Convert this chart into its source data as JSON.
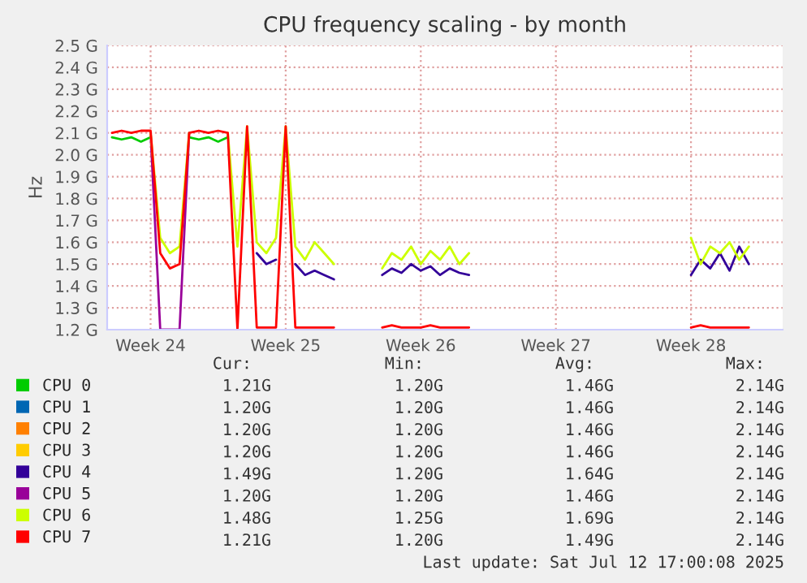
{
  "chart_data": {
    "type": "line",
    "title": "CPU frequency scaling - by month",
    "ylabel": "Hz",
    "categories": [
      null,
      null,
      null,
      null,
      "Week 24",
      null,
      null,
      null,
      null,
      null,
      null,
      null,
      null,
      null,
      null,
      null,
      null,
      null,
      "Week 25",
      null,
      null,
      null,
      null,
      null,
      null,
      null,
      null,
      null,
      null,
      null,
      null,
      null,
      "Week 26",
      null,
      null,
      null,
      null,
      null,
      null,
      null,
      null,
      null,
      null,
      null,
      null,
      null,
      "Week 27",
      null,
      null,
      null,
      null,
      null,
      null,
      null,
      null,
      null,
      null,
      null,
      null,
      null,
      "Week 28",
      null,
      null,
      null,
      null,
      null,
      null,
      null,
      null,
      null
    ],
    "series": [
      {
        "name": "CPU 0",
        "color": "#00cc00",
        "values": [
          2.08,
          2.07,
          2.08,
          2.06,
          2.08,
          null,
          null,
          null,
          2.08,
          2.07,
          2.08,
          2.06,
          2.08,
          null,
          null,
          null,
          null,
          null,
          null,
          null,
          null,
          null,
          null,
          null,
          null,
          null,
          null,
          null,
          null,
          null,
          null,
          null,
          null,
          null,
          null,
          null,
          null,
          null,
          null,
          null,
          null,
          null,
          null,
          null,
          null,
          null,
          null,
          null,
          null,
          null,
          null,
          null,
          null,
          null,
          null,
          null,
          null,
          null,
          null,
          null,
          null,
          null,
          null,
          null,
          null,
          null,
          null,
          null,
          null,
          null
        ]
      },
      {
        "name": "CPU 1",
        "color": "#0066b3",
        "values": [
          null,
          null,
          null,
          null,
          null,
          null,
          null,
          null,
          null,
          null,
          null,
          null,
          null,
          null,
          null,
          null,
          null,
          null,
          null,
          null,
          null,
          null,
          null,
          null,
          null,
          null,
          null,
          null,
          null,
          null,
          null,
          null,
          null,
          null,
          null,
          null,
          null,
          null,
          null,
          null,
          null,
          null,
          null,
          null,
          null,
          null,
          null,
          null,
          null,
          null,
          null,
          null,
          null,
          null,
          null,
          null,
          null,
          null,
          null,
          null,
          null,
          null,
          null,
          null,
          null,
          null,
          null,
          null,
          null,
          null
        ]
      },
      {
        "name": "CPU 2",
        "color": "#ff8000",
        "values": [
          null,
          null,
          null,
          null,
          null,
          null,
          null,
          null,
          null,
          null,
          null,
          null,
          null,
          null,
          null,
          null,
          null,
          null,
          null,
          null,
          null,
          null,
          null,
          null,
          null,
          null,
          null,
          null,
          null,
          null,
          null,
          null,
          null,
          null,
          null,
          null,
          null,
          null,
          null,
          null,
          null,
          null,
          null,
          null,
          null,
          null,
          null,
          null,
          null,
          null,
          null,
          null,
          null,
          null,
          null,
          null,
          null,
          null,
          null,
          null,
          null,
          null,
          null,
          null,
          null,
          null,
          null,
          null,
          null,
          null
        ]
      },
      {
        "name": "CPU 3",
        "color": "#ffcc00",
        "values": [
          null,
          null,
          null,
          null,
          null,
          null,
          null,
          null,
          null,
          null,
          null,
          null,
          null,
          null,
          null,
          null,
          null,
          null,
          null,
          null,
          null,
          null,
          null,
          null,
          null,
          null,
          null,
          null,
          null,
          null,
          null,
          null,
          null,
          null,
          null,
          null,
          null,
          null,
          null,
          null,
          null,
          null,
          null,
          null,
          null,
          null,
          null,
          null,
          null,
          null,
          null,
          null,
          null,
          null,
          null,
          null,
          null,
          null,
          null,
          null,
          null,
          null,
          null,
          null,
          null,
          null,
          null,
          null,
          null,
          null
        ]
      },
      {
        "name": "CPU 4",
        "color": "#330099",
        "values": [
          null,
          null,
          null,
          null,
          null,
          null,
          null,
          null,
          null,
          null,
          null,
          null,
          null,
          null,
          null,
          1.55,
          1.5,
          1.52,
          null,
          1.5,
          1.45,
          1.47,
          1.45,
          1.43,
          null,
          null,
          null,
          null,
          1.45,
          1.48,
          1.46,
          1.5,
          1.47,
          1.49,
          1.45,
          1.48,
          1.46,
          1.45,
          null,
          null,
          null,
          null,
          null,
          null,
          null,
          null,
          null,
          null,
          null,
          null,
          null,
          null,
          null,
          null,
          null,
          null,
          null,
          null,
          null,
          null,
          1.45,
          1.52,
          1.48,
          1.55,
          1.47,
          1.58,
          1.5,
          null,
          null,
          null
        ]
      },
      {
        "name": "CPU 5",
        "color": "#990099",
        "values": [
          null,
          null,
          null,
          null,
          2.1,
          1.2,
          1.2,
          1.2,
          2.1,
          null,
          null,
          null,
          null,
          null,
          null,
          null,
          null,
          null,
          null,
          null,
          null,
          null,
          null,
          null,
          null,
          null,
          null,
          null,
          null,
          null,
          null,
          null,
          null,
          null,
          null,
          null,
          null,
          null,
          null,
          null,
          null,
          null,
          null,
          null,
          null,
          null,
          null,
          null,
          null,
          null,
          null,
          null,
          null,
          null,
          null,
          null,
          null,
          null,
          null,
          null,
          null,
          null,
          null,
          null,
          null,
          null,
          null,
          null,
          null,
          null
        ]
      },
      {
        "name": "CPU 6",
        "color": "#ccff00",
        "values": [
          null,
          null,
          null,
          null,
          2.1,
          1.62,
          1.55,
          1.58,
          2.1,
          null,
          null,
          null,
          2.1,
          1.58,
          2.13,
          1.6,
          1.55,
          1.62,
          2.13,
          1.58,
          1.52,
          1.6,
          1.55,
          1.5,
          null,
          null,
          null,
          null,
          1.48,
          1.55,
          1.52,
          1.58,
          1.5,
          1.56,
          1.52,
          1.58,
          1.5,
          1.55,
          null,
          null,
          null,
          null,
          null,
          null,
          null,
          null,
          null,
          null,
          null,
          null,
          null,
          null,
          null,
          null,
          null,
          null,
          null,
          null,
          null,
          null,
          1.62,
          1.5,
          1.58,
          1.55,
          1.6,
          1.52,
          1.58,
          null,
          null,
          null
        ]
      },
      {
        "name": "CPU 7",
        "color": "#ff0000",
        "values": [
          2.1,
          2.11,
          2.1,
          2.11,
          2.11,
          1.55,
          1.48,
          1.5,
          2.1,
          2.11,
          2.1,
          2.11,
          2.1,
          1.2,
          2.13,
          1.21,
          1.21,
          1.21,
          2.13,
          1.21,
          1.21,
          1.21,
          1.21,
          1.21,
          null,
          null,
          null,
          null,
          1.21,
          1.22,
          1.21,
          1.21,
          1.21,
          1.22,
          1.21,
          1.21,
          1.21,
          1.21,
          null,
          null,
          null,
          null,
          null,
          null,
          null,
          null,
          null,
          null,
          null,
          null,
          null,
          null,
          null,
          null,
          null,
          null,
          null,
          null,
          null,
          null,
          1.21,
          1.22,
          1.21,
          1.21,
          1.21,
          1.21,
          1.21,
          null,
          null,
          null
        ]
      }
    ],
    "ylim": [
      1.2,
      2.5
    ],
    "yticks": [
      {
        "value": 1.2,
        "label": "1.2 G"
      },
      {
        "value": 1.3,
        "label": "1.3 G"
      },
      {
        "value": 1.4,
        "label": "1.4 G"
      },
      {
        "value": 1.5,
        "label": "1.5 G"
      },
      {
        "value": 1.6,
        "label": "1.6 G"
      },
      {
        "value": 1.7,
        "label": "1.7 G"
      },
      {
        "value": 1.8,
        "label": "1.8 G"
      },
      {
        "value": 1.9,
        "label": "1.9 G"
      },
      {
        "value": 2.0,
        "label": "2.0 G"
      },
      {
        "value": 2.1,
        "label": "2.1 G"
      },
      {
        "value": 2.2,
        "label": "2.2 G"
      },
      {
        "value": 2.3,
        "label": "2.3 G"
      },
      {
        "value": 2.4,
        "label": "2.4 G"
      },
      {
        "value": 2.5,
        "label": "2.5 G"
      }
    ],
    "grid": true,
    "legend": "bottom",
    "marker": "none",
    "line_style": "solid",
    "annotations": [
      "Cur:",
      "Min:",
      "Avg:",
      "Max:",
      "1.21G",
      "1.20G",
      "1.46G",
      "2.14G",
      "1.20G",
      "1.20G",
      "1.46G",
      "2.14G",
      "1.20G",
      "1.20G",
      "1.46G",
      "2.14G",
      "1.20G",
      "1.20G",
      "1.46G",
      "2.14G",
      "1.49G",
      "1.20G",
      "1.64G",
      "2.14G",
      "1.20G",
      "1.20G",
      "1.46G",
      "2.14G",
      "1.48G",
      "1.25G",
      "1.69G",
      "2.14G",
      "1.21G",
      "1.20G",
      "1.49G",
      "2.14G",
      "Last update: Sat Jul 12 17:00:08 2025"
    ]
  }
}
